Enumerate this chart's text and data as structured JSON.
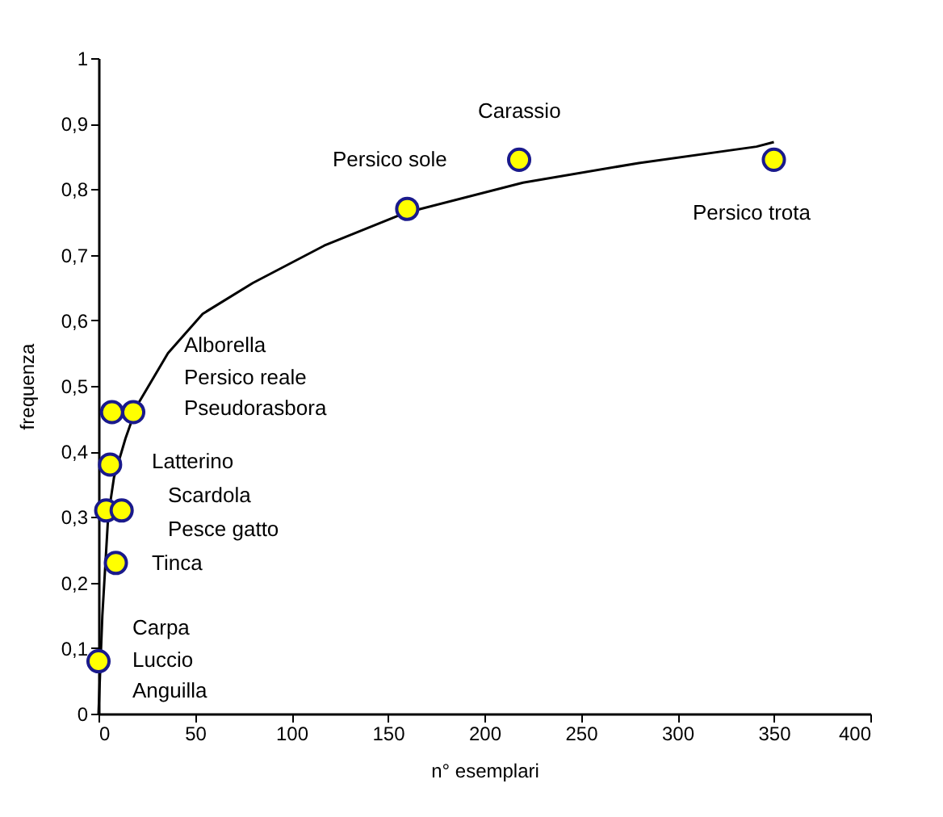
{
  "chart_data": {
    "type": "scatter",
    "xlabel": "n° esemplari",
    "ylabel": "frequenza",
    "xlim": [
      0,
      400
    ],
    "xticks": [
      0,
      50,
      100,
      150,
      200,
      250,
      300,
      350,
      400
    ],
    "ylim": [
      0,
      1
    ],
    "yticks": [
      {
        "value": 0,
        "label": "0"
      },
      {
        "value": 0.1,
        "label": "0,1"
      },
      {
        "value": 0.2,
        "label": "0,2"
      },
      {
        "value": 0.3,
        "label": "0,3"
      },
      {
        "value": 0.4,
        "label": "0,4"
      },
      {
        "value": 0.5,
        "label": "0,5"
      },
      {
        "value": 0.6,
        "label": "0,6"
      },
      {
        "value": 0.7,
        "label": "0,7"
      },
      {
        "value": 0.8,
        "label": "0,8"
      },
      {
        "value": 0.9,
        "label": "0,9"
      },
      {
        "value": 1,
        "label": "1"
      }
    ],
    "grid": false,
    "marker": "circle",
    "series": [
      {
        "type": "line",
        "color": "#000000",
        "line_style": "solid",
        "marker": "none",
        "x": [
          0,
          2,
          5,
          8,
          14,
          20,
          36,
          54,
          80,
          117,
          159,
          220,
          280,
          341,
          350
        ],
        "values": [
          0,
          0.15,
          0.3,
          0.36,
          0.42,
          0.47,
          0.55,
          0.61,
          0.657,
          0.714,
          0.764,
          0.81,
          0.84,
          0.865,
          0.872
        ]
      },
      {
        "color": "#ffff00",
        "x": [
          0,
          9,
          4,
          12,
          6,
          7,
          18,
          160,
          218,
          350
        ],
        "values": [
          0.08,
          0.23,
          0.31,
          0.31,
          0.38,
          0.46,
          0.46,
          0.77,
          0.845,
          0.845
        ]
      }
    ],
    "annotations": [
      "Carassio",
      "Persico sole",
      "Persico trota",
      "Alborella",
      "Persico reale",
      "Pseudorasbora",
      "Latterino",
      "Scardola",
      "Pesce gatto",
      "Tinca",
      "Carpa",
      "Luccio",
      "Anguilla"
    ]
  }
}
